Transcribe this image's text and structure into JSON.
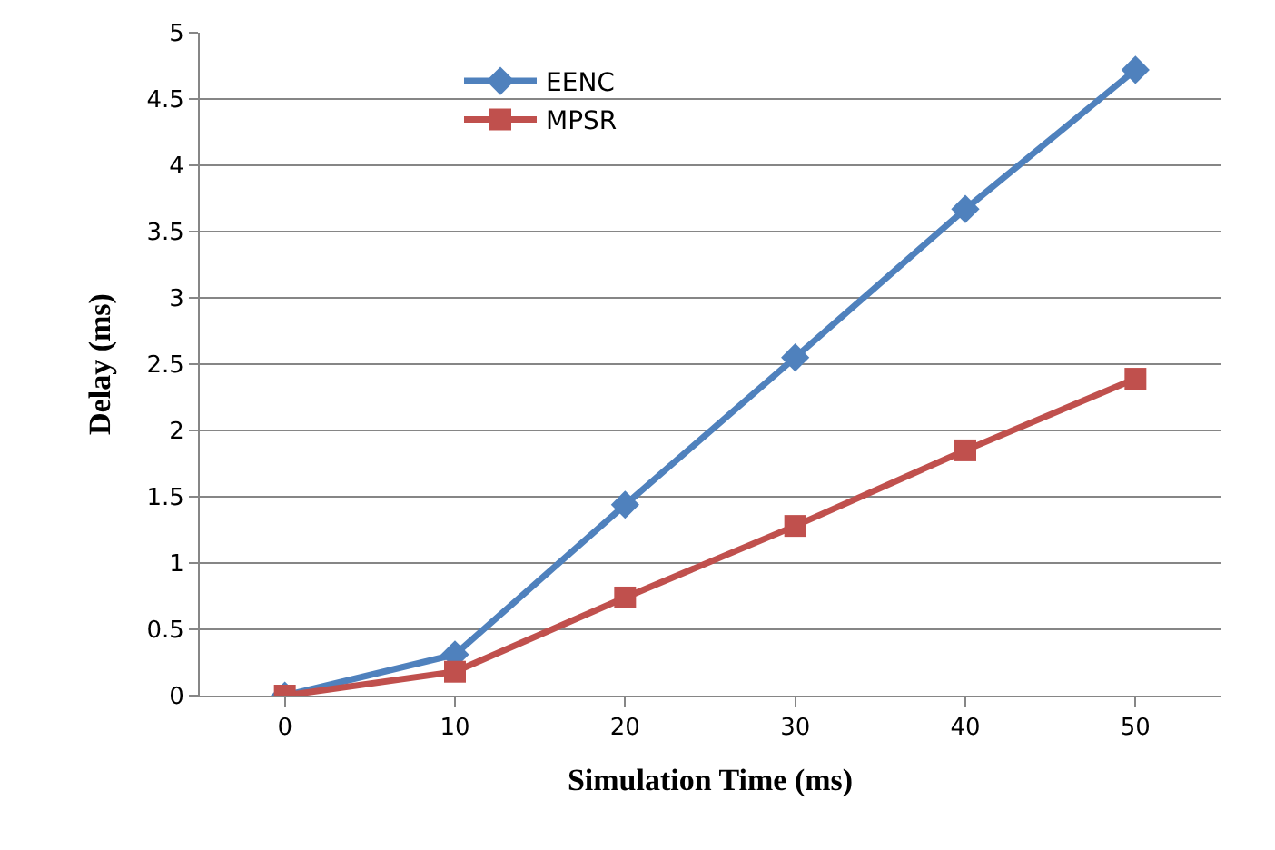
{
  "chart_data": {
    "type": "line",
    "xlabel": "Simulation Time (ms)",
    "ylabel": "Delay (ms)",
    "categories": [
      "0",
      "10",
      "20",
      "30",
      "40",
      "50"
    ],
    "series": [
      {
        "name": "EENC",
        "color": "#4f81bd",
        "marker": "diamond",
        "values": [
          0,
          0.31,
          1.44,
          2.55,
          3.67,
          4.72
        ]
      },
      {
        "name": "MPSR",
        "color": "#c0504d",
        "marker": "square",
        "values": [
          0,
          0.18,
          0.74,
          1.28,
          1.85,
          2.39
        ]
      }
    ],
    "ylim": [
      0,
      5
    ],
    "yticks": [
      0,
      0.5,
      1,
      1.5,
      2,
      2.5,
      3,
      3.5,
      4,
      4.5,
      5
    ],
    "grid": "y",
    "legend": "top left",
    "line_style": "solid"
  }
}
